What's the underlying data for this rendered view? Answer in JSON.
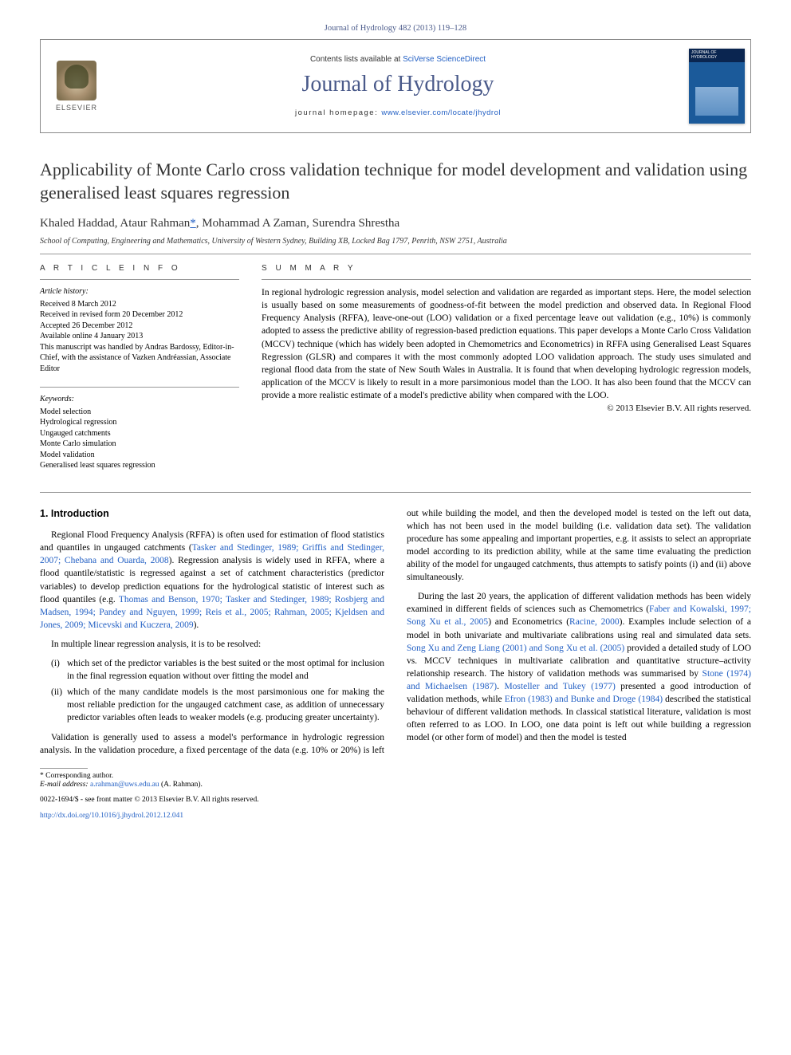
{
  "journal_ref": "Journal of Hydrology 482 (2013) 119–128",
  "header": {
    "contents_prefix": "Contents lists available at ",
    "contents_link": "SciVerse ScienceDirect",
    "journal_name": "Journal of Hydrology",
    "homepage_prefix": "journal homepage: ",
    "homepage_url": "www.elsevier.com/locate/jhydrol",
    "publisher_label": "ELSEVIER"
  },
  "article": {
    "title": "Applicability of Monte Carlo cross validation technique for model development and validation using generalised least squares regression",
    "authors": "Khaled Haddad, Ataur Rahman",
    "corr_marker": "*",
    "authors_rest": ", Mohammad A Zaman, Surendra Shrestha",
    "affiliation": "School of Computing, Engineering and Mathematics, University of Western Sydney, Building XB, Locked Bag 1797, Penrith, NSW 2751, Australia"
  },
  "info": {
    "label": "A R T I C L E   I N F O",
    "history_hd": "Article history:",
    "history": [
      "Received 8 March 2012",
      "Received in revised form 20 December 2012",
      "Accepted 26 December 2012",
      "Available online 4 January 2013",
      "This manuscript was handled by Andras Bardossy, Editor-in-Chief, with the assistance of Vazken Andréassian, Associate Editor"
    ],
    "keywords_hd": "Keywords:",
    "keywords": [
      "Model selection",
      "Hydrological regression",
      "Ungauged catchments",
      "Monte Carlo simulation",
      "Model validation",
      "Generalised least squares regression"
    ]
  },
  "summary": {
    "label": "S U M M A R Y",
    "text": "In regional hydrologic regression analysis, model selection and validation are regarded as important steps. Here, the model selection is usually based on some measurements of goodness-of-fit between the model prediction and observed data. In Regional Flood Frequency Analysis (RFFA), leave-one-out (LOO) validation or a fixed percentage leave out validation (e.g., 10%) is commonly adopted to assess the predictive ability of regression-based prediction equations. This paper develops a Monte Carlo Cross Validation (MCCV) technique (which has widely been adopted in Chemometrics and Econometrics) in RFFA using Generalised Least Squares Regression (GLSR) and compares it with the most commonly adopted LOO validation approach. The study uses simulated and regional flood data from the state of New South Wales in Australia. It is found that when developing hydrologic regression models, application of the MCCV is likely to result in a more parsimonious model than the LOO. It has also been found that the MCCV can provide a more realistic estimate of a model's predictive ability when compared with the LOO.",
    "copyright": "© 2013 Elsevier B.V. All rights reserved."
  },
  "body": {
    "h_intro": "1. Introduction",
    "p1a": "Regional Flood Frequency Analysis (RFFA) is often used for estimation of flood statistics and quantiles in ungauged catchments (",
    "p1_ref1": "Tasker and Stedinger, 1989; Griffis and Stedinger, 2007; Chebana and Ouarda, 2008",
    "p1b": "). Regression analysis is widely used in RFFA, where a flood quantile/statistic is regressed against a set of catchment characteristics (predictor variables) to develop prediction equations for the hydrological statistic of interest such as flood quantiles (e.g. ",
    "p1_ref2": "Thomas and Benson, 1970; Tasker and Stedinger, 1989; Rosbjerg and Madsen, 1994; Pandey and Nguyen, 1999; Reis et al., 2005; Rahman, 2005; Kjeldsen and Jones, 2009; Micevski and Kuczera, 2009",
    "p1c": ").",
    "p2": "In multiple linear regression analysis, it is to be resolved:",
    "li1_num": "(i)",
    "li1": "which set of the predictor variables is the best suited or the most optimal for inclusion in the final regression equation without over fitting the model and",
    "li2_num": "(ii)",
    "li2": "which of the many candidate models is the most parsimonious one for making the most reliable prediction for the ungauged catchment case, as addition of unnecessary predictor variables often leads to weaker models (e.g. producing greater uncertainty).",
    "p3": "Validation is generally used to assess a model's performance in hydrologic regression analysis. In the validation procedure, a fixed percentage of the data (e.g. 10% or 20%) is left out while building the model, and then the developed model is tested on the left out data, which has not been used in the model building (i.e. validation data set). The validation procedure has some appealing and important properties, e.g. it assists to select an appropriate model according to its prediction ability, while at the same time evaluating the prediction ability of the model for ungauged catchments, thus attempts to satisfy points (i) and (ii) above simultaneously.",
    "p4a": "During the last 20 years, the application of different validation methods has been widely examined in different fields of sciences such as Chemometrics (",
    "p4_ref1": "Faber and Kowalski, 1997; Song Xu et al., 2005",
    "p4b": ") and Econometrics (",
    "p4_ref2": "Racine, 2000",
    "p4c": "). Examples include selection of a model in both univariate and multivariate calibrations using real and simulated data sets. ",
    "p4_ref3": "Song Xu and Zeng Liang (2001) and Song Xu et al. (2005)",
    "p4d": " provided a detailed study of LOO vs. MCCV techniques in multivariate calibration and quantitative structure–activity relationship research. The history of validation methods was summarised by ",
    "p4_ref4": "Stone (1974) and Michaelsen (1987)",
    "p4e": ". ",
    "p4_ref5": "Mosteller and Tukey (1977)",
    "p4f": " presented a good introduction of validation methods, while ",
    "p4_ref6": "Efron (1983) and Bunke and Droge (1984)",
    "p4g": " described the statistical behaviour of different validation methods. In classical statistical literature, validation is most often referred to as LOO. In LOO, one data point is left out while building a regression model (or other form of model) and then the model is tested"
  },
  "footer": {
    "corr_label": "* Corresponding author.",
    "email_label": "E-mail address:",
    "email": "a.rahman@uws.edu.au",
    "email_person": "(A. Rahman).",
    "issn_line": "0022-1694/$ - see front matter © 2013 Elsevier B.V. All rights reserved.",
    "doi": "http://dx.doi.org/10.1016/j.jhydrol.2012.12.041"
  },
  "colors": {
    "link": "#2360c4",
    "journal_brand": "#4a5a8a",
    "border": "#888888"
  }
}
